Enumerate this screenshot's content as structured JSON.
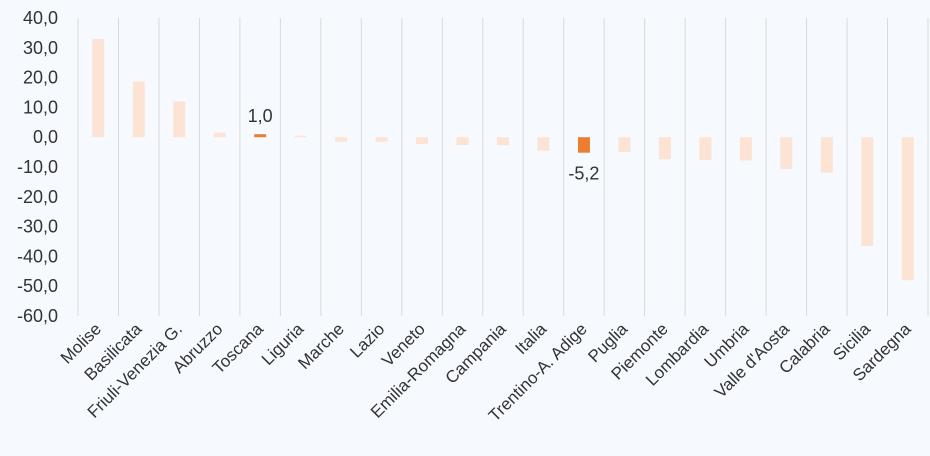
{
  "chart_data": {
    "type": "bar",
    "categories": [
      "Molise",
      "Basilicata",
      "Friuli-Venezia G.",
      "Abruzzo",
      "Toscana",
      "Liguria",
      "Marche",
      "Lazio",
      "Veneto",
      "Emilia-Romagna",
      "Campania",
      "Italia",
      "Trentino-A. Adige",
      "Puglia",
      "Piemonte",
      "Lombardia",
      "Umbria",
      "Valle d'Aosta",
      "Calabria",
      "Sicilia",
      "Sardegna"
    ],
    "values": [
      33.0,
      18.7,
      12.0,
      1.5,
      1.0,
      0.0,
      -1.5,
      -1.5,
      -2.3,
      -2.6,
      -2.7,
      -4.5,
      -5.2,
      -5.0,
      -7.4,
      -7.7,
      -7.8,
      -10.7,
      -11.9,
      -36.5,
      -48.0
    ],
    "ylim": [
      -60,
      40
    ],
    "yticks": [
      "40,0",
      "30,0",
      "20,0",
      "10,0",
      "0,0",
      "-10,0",
      "-20,0",
      "-30,0",
      "-40,0",
      "-50,0",
      "-60,0"
    ],
    "ytick_values": [
      40,
      30,
      20,
      10,
      0,
      -10,
      -20,
      -30,
      -40,
      -50,
      -60
    ],
    "grid": "vertical",
    "colors": {
      "default": "#fde3d3",
      "highlight": "#ed7d31",
      "grid": "#d9d9d9"
    },
    "highlighted": [
      {
        "category": "Toscana",
        "label": "1,0"
      },
      {
        "category": "Trentino-A. Adige",
        "label": "-5,2"
      }
    ]
  }
}
